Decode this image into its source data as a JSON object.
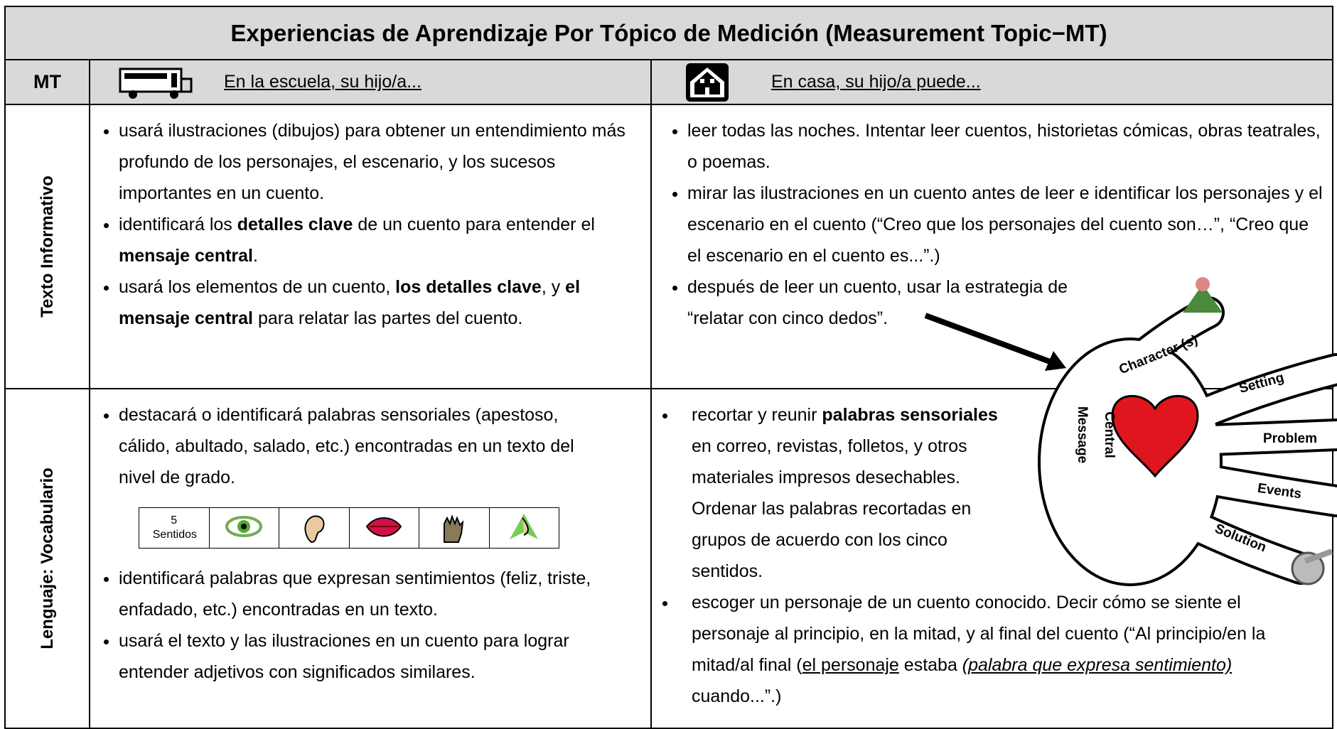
{
  "header": {
    "title": "Experiencias de Aprendizaje Por Tópico de Medición (Measurement Topic−MT)",
    "mt": "MT",
    "school": "En la escuela, su hijo/a...",
    "home": "En casa, su hijo/a puede..."
  },
  "rows": [
    {
      "label": "Texto Informativo",
      "school": [
        [
          {
            "text": "usará ilustraciones (dibujos) para obtener un entendimiento más profundo de los personajes, el escenario, y los sucesos importantes en un cuento."
          }
        ],
        [
          {
            "text": "identificará los "
          },
          {
            "text": "detalles clave",
            "style": "bold"
          },
          {
            "text": " de un cuento para entender el "
          },
          {
            "text": "mensaje central",
            "style": "bold"
          },
          {
            "text": "."
          }
        ],
        [
          {
            "text": "usará los elementos de un cuento, "
          },
          {
            "text": "los detalles clave",
            "style": "bold"
          },
          {
            "text": ", y "
          },
          {
            "text": "el mensaje central",
            "style": "bold"
          },
          {
            "text": " para relatar las partes del cuento."
          }
        ]
      ],
      "home": [
        [
          {
            "text": "leer todas las noches.  Intentar leer cuentos, historietas cómicas, obras teatrales, o poemas."
          }
        ],
        [
          {
            "text": "mirar las ilustraciones en un cuento antes de leer e identificar los personajes y el escenario en el cuento (“Creo que los personajes del cuento son…”, “Creo que el escenario en el cuento es...”.)"
          }
        ],
        [
          {
            "text": "después de leer un cuento, usar la estrategia de “relatar con cinco dedos”."
          }
        ]
      ]
    },
    {
      "label": "Lenguaje: Vocabulario",
      "school": [
        [
          {
            "text": "destacará o identificará palabras sensoriales (apestoso, cálido, abultado, salado, etc.) encontradas en un texto del nivel de grado."
          }
        ],
        [
          {
            "text": "identificará palabras que expresan sentimientos (feliz, triste, enfadado, etc.) encontradas en un texto."
          }
        ],
        [
          {
            "text": "usará el texto y las ilustraciones en un cuento para lograr entender adjetivos con significados similares."
          }
        ]
      ],
      "home": [
        [
          {
            "text": "recortar y reunir "
          },
          {
            "text": "palabras sensoriales",
            "style": "bold"
          },
          {
            "text": " en correo, revistas, folletos, y otros materiales impresos desechables.  Ordenar las palabras recortadas en grupos de acuerdo con los cinco sentidos."
          }
        ],
        [
          {
            "text": "escoger un personaje de un cuento conocido. Decir cómo se siente el personaje al principio, en la mitad, y al final del cuento (“Al principio/en la mitad/al final ("
          },
          {
            "text": "el personaje",
            "style": "underline"
          },
          {
            "text": " estaba "
          },
          {
            "text": "(palabra que expresa sentimiento)",
            "style": "underline-italic"
          },
          {
            "text": " cuando...”.)"
          }
        ]
      ]
    }
  ],
  "senses": {
    "label": "5 Sentidos"
  },
  "hand": {
    "labels": [
      "Character (s)",
      "Setting",
      "Problem",
      "Events",
      "Solution",
      "Central",
      "Message"
    ]
  }
}
